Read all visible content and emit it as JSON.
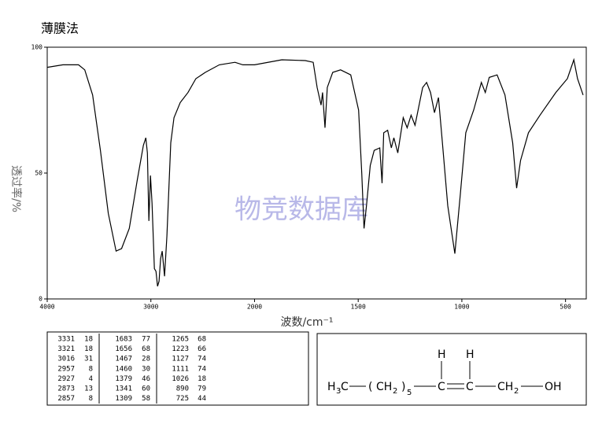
{
  "chart_data": {
    "type": "line",
    "title": "薄膜法",
    "xlabel": "波数/cm⁻¹",
    "ylabel": "透过率/%",
    "watermark": "物竞数据库",
    "xlim": [
      4000,
      400
    ],
    "xbreak": 2000,
    "ylim": [
      0,
      100
    ],
    "xticks": [
      4000,
      3000,
      2000,
      1500,
      1000,
      500
    ],
    "yticks": [
      0,
      50,
      100
    ],
    "color": "#000000",
    "x": [
      4000,
      3849,
      3698,
      3638,
      3562,
      3487,
      3411,
      3336,
      3283,
      3208,
      3132,
      3072,
      3049,
      3034,
      3019,
      3004,
      2989,
      2966,
      2951,
      2936,
      2921,
      2906,
      2891,
      2868,
      2845,
      2808,
      2777,
      2717,
      2642,
      2566,
      2475,
      2340,
      2189,
      2113,
      2000,
      1868,
      1755,
      1717,
      1698,
      1679,
      1672,
      1660,
      1649,
      1623,
      1585,
      1536,
      1498,
      1483,
      1472,
      1460,
      1442,
      1423,
      1396,
      1385,
      1377,
      1358,
      1340,
      1328,
      1309,
      1283,
      1264,
      1245,
      1226,
      1189,
      1170,
      1151,
      1132,
      1113,
      1094,
      1068,
      1034,
      1008,
      981,
      943,
      906,
      887,
      868,
      830,
      792,
      755,
      736,
      717,
      679,
      623,
      547,
      491,
      460,
      442,
      415
    ],
    "values": [
      92,
      93,
      93,
      91,
      81,
      59,
      34,
      19,
      20,
      28,
      47,
      61,
      64,
      58,
      31,
      49,
      38,
      12,
      11,
      5,
      7,
      16,
      19,
      9,
      25,
      62,
      72,
      78,
      82,
      87.5,
      90,
      93,
      94,
      93,
      93,
      95,
      94.7,
      94,
      84,
      77,
      82,
      68,
      84,
      90,
      91,
      89,
      75,
      50,
      28,
      37,
      53,
      59,
      60,
      46,
      66,
      67,
      60,
      64,
      58,
      72,
      68,
      73,
      69,
      84,
      86,
      82,
      74,
      80,
      62,
      37,
      18,
      41,
      66,
      75,
      86,
      82,
      88,
      89,
      81,
      62,
      44,
      55,
      66,
      73,
      82,
      87.5,
      95,
      87.5,
      81
    ]
  },
  "peak_table": {
    "rows": [
      [
        "3331",
        "18",
        "1683",
        "77",
        "1265",
        "68"
      ],
      [
        "3321",
        "18",
        "1656",
        "68",
        "1223",
        "66"
      ],
      [
        "3016",
        "31",
        "1467",
        "28",
        "1127",
        "74"
      ],
      [
        "2957",
        "8",
        "1460",
        "30",
        "1111",
        "74"
      ],
      [
        "2927",
        "4",
        "1379",
        "46",
        "1026",
        "18"
      ],
      [
        "2873",
        "13",
        "1341",
        "60",
        "890",
        "79"
      ],
      [
        "2857",
        "8",
        "1309",
        "58",
        "725",
        "44"
      ]
    ]
  },
  "structure": {
    "parts": [
      "H",
      "3",
      "C",
      "(",
      "CH",
      "2",
      ")",
      "5",
      "C",
      "C",
      "CH",
      "2",
      "OH",
      "H",
      "H"
    ]
  }
}
